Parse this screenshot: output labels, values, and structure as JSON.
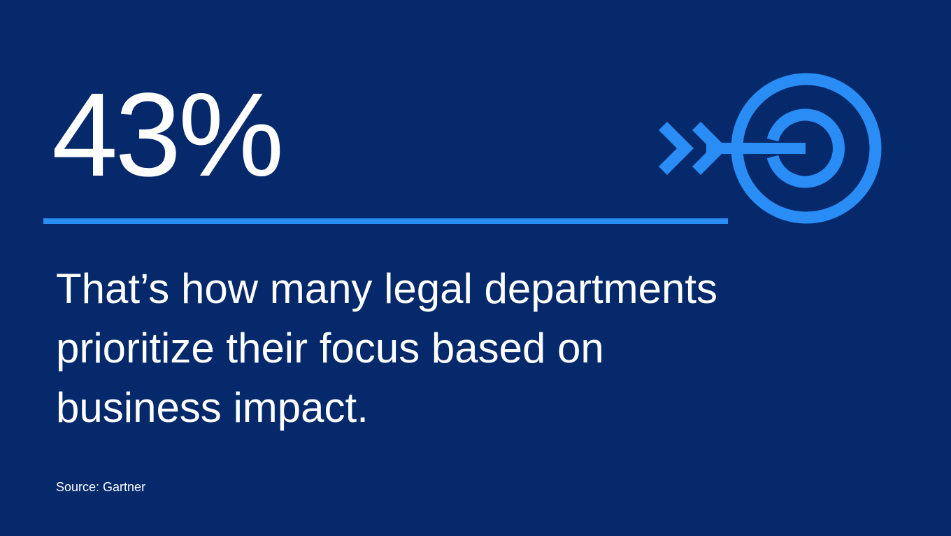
{
  "stat": "43%",
  "description": [
    "That’s how many legal departments",
    "prioritize their focus based on",
    "business impact."
  ],
  "source": "Source: Gartner"
}
